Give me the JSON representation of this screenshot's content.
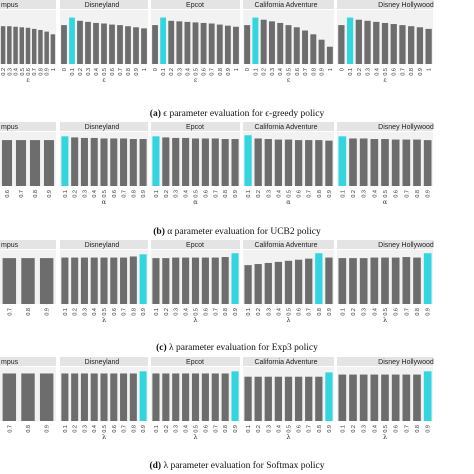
{
  "chart_data": [
    {
      "type": "bar",
      "caption_label": "(a)",
      "caption_text": "ϵ parameter evaluation for ϵ-greedy policy",
      "param_symbol": "ε",
      "facets": [
        "mpus",
        "Disneyland",
        "Epcot",
        "California Adventure",
        "Disney Hollywood"
      ],
      "categories": [
        "0",
        "0.1",
        "0.2",
        "0.3",
        "0.4",
        "0.5",
        "0.6",
        "0.7",
        "0.8",
        "0.9",
        "1"
      ],
      "highlight_color": "#33d6de",
      "bar_color": "#6d6d6d",
      "panels": [
        {
          "values": [
            0.72,
            0.72,
            0.7,
            0.7,
            0.69,
            0.68,
            0.67,
            0.65,
            0.63,
            0.6,
            0.55
          ],
          "highlight": -1,
          "shown_from": 2
        },
        {
          "values": [
            0.72,
            0.86,
            0.8,
            0.78,
            0.76,
            0.75,
            0.73,
            0.72,
            0.7,
            0.68,
            0.66
          ],
          "highlight": 1
        },
        {
          "values": [
            0.72,
            0.86,
            0.8,
            0.79,
            0.78,
            0.77,
            0.76,
            0.75,
            0.73,
            0.71,
            0.69
          ],
          "highlight": 1
        },
        {
          "values": [
            0.72,
            0.86,
            0.82,
            0.79,
            0.76,
            0.72,
            0.68,
            0.62,
            0.55,
            0.45,
            0.32
          ],
          "highlight": 1
        },
        {
          "values": [
            0.72,
            0.86,
            0.82,
            0.8,
            0.78,
            0.76,
            0.74,
            0.72,
            0.7,
            0.68,
            0.65
          ],
          "highlight": 1
        }
      ]
    },
    {
      "type": "bar",
      "caption_label": "(b)",
      "caption_text": "α parameter evaluation for UCB2 policy",
      "param_symbol": "α",
      "facets": [
        "mpus",
        "Disneyland",
        "Epcot",
        "California Adventure",
        "Disney Hollywood"
      ],
      "categories": [
        "0.1",
        "0.2",
        "0.3",
        "0.4",
        "0.5",
        "0.6",
        "0.7",
        "0.8",
        "0.9"
      ],
      "highlight_color": "#33d6de",
      "bar_color": "#6d6d6d",
      "panels": [
        {
          "values": [
            0.85,
            0.85,
            0.85,
            0.85,
            0.85,
            0.85,
            0.85,
            0.85,
            0.85
          ],
          "highlight": -1,
          "shown_from": 5
        },
        {
          "values": [
            0.92,
            0.9,
            0.89,
            0.89,
            0.88,
            0.88,
            0.88,
            0.87,
            0.87
          ],
          "highlight": 0
        },
        {
          "values": [
            0.92,
            0.9,
            0.89,
            0.89,
            0.88,
            0.88,
            0.88,
            0.87,
            0.87
          ],
          "highlight": 0
        },
        {
          "values": [
            0.94,
            0.88,
            0.87,
            0.86,
            0.86,
            0.85,
            0.85,
            0.85,
            0.84
          ],
          "highlight": 0
        },
        {
          "values": [
            0.92,
            0.88,
            0.88,
            0.87,
            0.87,
            0.86,
            0.86,
            0.86,
            0.85
          ],
          "highlight": 0
        }
      ]
    },
    {
      "type": "bar",
      "caption_label": "(c)",
      "caption_text": "λ parameter evaluation for Exp3 policy",
      "param_symbol": "λ",
      "facets": [
        "mpus",
        "Disneyland",
        "Epcot",
        "California Adventure",
        "Disney Hollywood"
      ],
      "categories": [
        "0.1",
        "0.2",
        "0.3",
        "0.4",
        "0.5",
        "0.6",
        "0.7",
        "0.8",
        "0.9"
      ],
      "highlight_color": "#33d6de",
      "bar_color": "#6d6d6d",
      "panels": [
        {
          "values": [
            0.85,
            0.85,
            0.85,
            0.85,
            0.85,
            0.85,
            0.85,
            0.85,
            0.85
          ],
          "highlight": 0,
          "shown_from": 6
        },
        {
          "values": [
            0.86,
            0.86,
            0.86,
            0.86,
            0.86,
            0.86,
            0.86,
            0.88,
            0.92
          ],
          "highlight": 8
        },
        {
          "values": [
            0.85,
            0.85,
            0.86,
            0.86,
            0.86,
            0.86,
            0.86,
            0.87,
            0.94
          ],
          "highlight": 8
        },
        {
          "values": [
            0.72,
            0.74,
            0.76,
            0.78,
            0.8,
            0.82,
            0.84,
            0.94,
            0.86
          ],
          "highlight": 7
        },
        {
          "values": [
            0.85,
            0.85,
            0.85,
            0.86,
            0.86,
            0.86,
            0.87,
            0.86,
            0.94
          ],
          "highlight": 8
        }
      ]
    },
    {
      "type": "bar",
      "caption_label": "(d)",
      "caption_text": "λ parameter evaluation for Softmax policy",
      "param_symbol": "λ",
      "facets": [
        "mpus",
        "Disneyland",
        "Epcot",
        "California Adventure",
        "Disney Hollywood"
      ],
      "categories": [
        "0.1",
        "0.2",
        "0.3",
        "0.4",
        "0.5",
        "0.6",
        "0.7",
        "0.8",
        "0.9"
      ],
      "highlight_color": "#33d6de",
      "bar_color": "#6d6d6d",
      "panels": [
        {
          "values": [
            0.9,
            0.88,
            0.88,
            0.88,
            0.88,
            0.88,
            0.88,
            0.88,
            0.88
          ],
          "highlight": 0,
          "shown_from": 6
        },
        {
          "values": [
            0.88,
            0.88,
            0.88,
            0.88,
            0.88,
            0.88,
            0.88,
            0.88,
            0.92
          ],
          "highlight": 8
        },
        {
          "values": [
            0.88,
            0.88,
            0.88,
            0.88,
            0.88,
            0.88,
            0.88,
            0.88,
            0.92
          ],
          "highlight": 8
        },
        {
          "values": [
            0.82,
            0.82,
            0.82,
            0.82,
            0.82,
            0.82,
            0.82,
            0.82,
            0.9
          ],
          "highlight": 8
        },
        {
          "values": [
            0.86,
            0.86,
            0.86,
            0.86,
            0.86,
            0.86,
            0.86,
            0.86,
            0.92
          ],
          "highlight": 8
        }
      ]
    }
  ]
}
